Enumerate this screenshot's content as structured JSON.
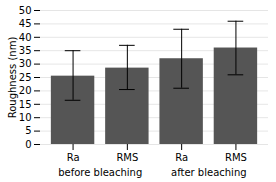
{
  "chart_data": {
    "type": "bar",
    "categories": [
      "Ra",
      "RMS",
      "Ra",
      "RMS"
    ],
    "values": [
      25.5,
      28.5,
      32.0,
      36.0
    ],
    "errors_upper": [
      9.5,
      8.5,
      11.0,
      10.0
    ],
    "errors_lower": [
      9.0,
      8.0,
      11.0,
      10.0
    ],
    "group_labels": [
      "before bleaching",
      "after bleaching"
    ],
    "color": "#555555",
    "ylabel": "Roughness (nm)",
    "ylim": [
      0,
      50
    ],
    "yticks": [
      0,
      5,
      10,
      15,
      20,
      25,
      30,
      35,
      40,
      45,
      50
    ],
    "grid": true
  }
}
